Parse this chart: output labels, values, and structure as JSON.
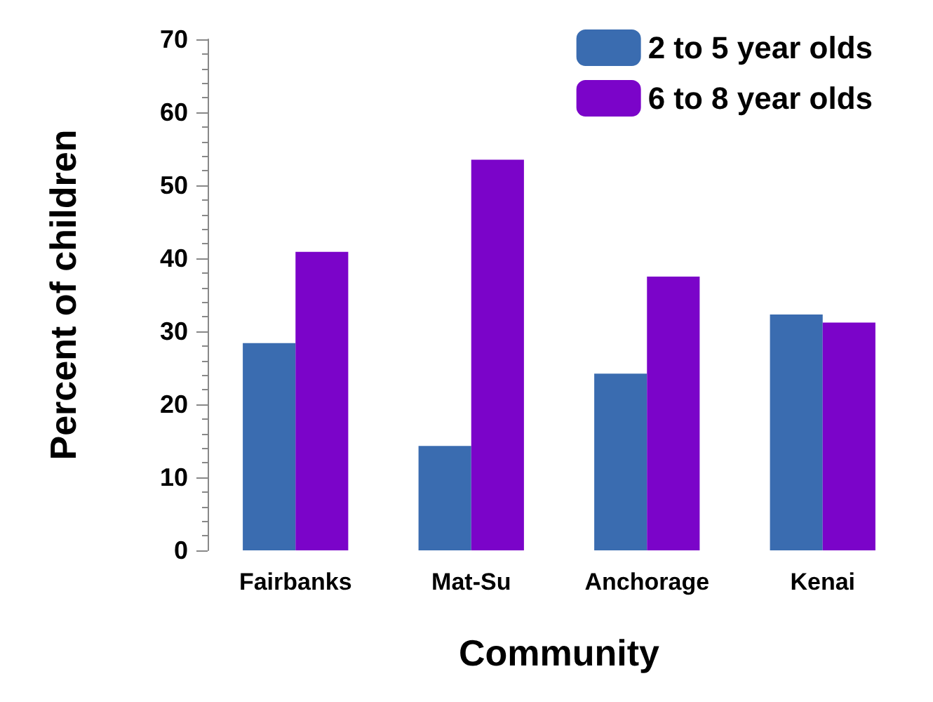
{
  "chart_data": {
    "type": "bar",
    "xlabel": "Community",
    "ylabel": "Percent of children",
    "categories": [
      "Fairbanks",
      "Mat-Su",
      "Anchorage",
      "Kenai"
    ],
    "series": [
      {
        "name": "2 to 5 year olds",
        "color": "#3a6cb0",
        "values": [
          28.4,
          14.3,
          24.2,
          32.3
        ]
      },
      {
        "name": "6 to 8 year olds",
        "color": "#7b04c9",
        "values": [
          40.9,
          53.5,
          37.5,
          31.2
        ]
      }
    ],
    "ylim": [
      0,
      70
    ],
    "yticks": [
      0,
      10,
      20,
      30,
      40,
      50,
      60,
      70
    ],
    "grid": false,
    "legend": "top right"
  }
}
